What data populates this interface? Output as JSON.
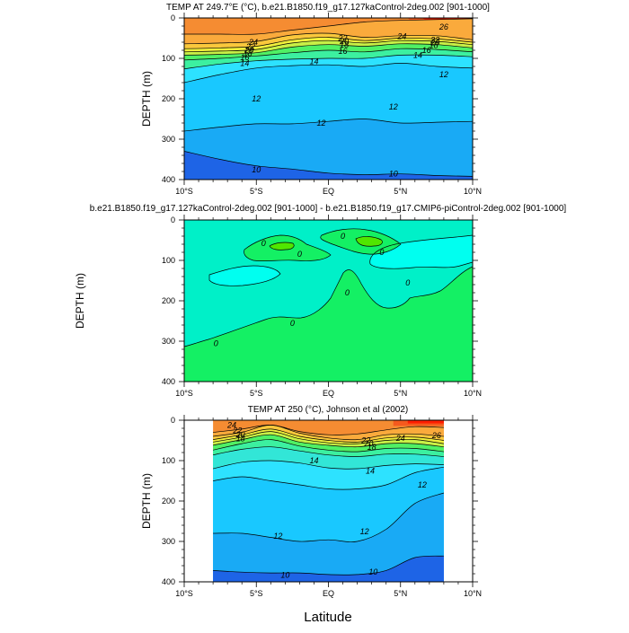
{
  "figure": {
    "xlabel": "Latitude",
    "colors": {
      "c10": "#1e64e6",
      "c12": "#1e8cf0",
      "c13": "#19aaf5",
      "c14": "#19c8ff",
      "c15": "#2de2ff",
      "c16": "#32e6d7",
      "c18": "#3cf0a0",
      "c20": "#50f064",
      "c22": "#c8f046",
      "c23": "#f0f03c",
      "c24": "#fac83c",
      "c25": "#faaa3c",
      "c26": "#f58c32",
      "c27": "#f55a1e",
      "dneg": "#00fff0",
      "dzero": "#00f0c8",
      "dpos": "#14f064",
      "dpos2": "#50e600"
    }
  },
  "chart_data": [
    {
      "type": "contour",
      "title": "TEMP AT 249.7°E (°C), b.e21.B1850.f19_g17.127kaControl-2deg.002 [901-1000]",
      "ylabel": "DEPTH (m)",
      "x_ticks": [
        "10°S",
        "5°S",
        "EQ",
        "5°N",
        "10°N"
      ],
      "x_tick_values": [
        -10,
        -5,
        0,
        5,
        10
      ],
      "y_ticks": [
        "0",
        "100",
        "200",
        "300",
        "400"
      ],
      "y_tick_values": [
        0,
        100,
        200,
        300,
        400
      ],
      "xlim": [
        -10,
        10
      ],
      "ylim": [
        400,
        0
      ],
      "data_extent": [
        -10,
        10
      ],
      "lat": [
        -10,
        -7.5,
        -5,
        -2.5,
        0,
        2.5,
        5,
        7.5,
        10
      ],
      "isotherms": [
        {
          "level": 25,
          "depth": [
            40,
            40,
            40,
            30,
            20,
            10,
            6,
            4,
            2
          ]
        },
        {
          "level": 24,
          "depth": [
            64,
            62,
            58,
            42,
            38,
            48,
            44,
            44,
            54
          ]
        },
        {
          "level": 22,
          "depth": [
            76,
            74,
            70,
            54,
            48,
            56,
            50,
            52,
            60
          ]
        },
        {
          "level": 20,
          "depth": [
            84,
            82,
            78,
            62,
            56,
            62,
            56,
            58,
            66
          ]
        },
        {
          "level": 18,
          "depth": [
            92,
            90,
            86,
            72,
            66,
            70,
            64,
            66,
            74
          ]
        },
        {
          "level": 16,
          "depth": [
            104,
            100,
            94,
            86,
            80,
            84,
            76,
            78,
            84
          ]
        },
        {
          "level": 14,
          "depth": [
            126,
            114,
            106,
            102,
            100,
            100,
            92,
            92,
            96
          ]
        },
        {
          "level": 13,
          "depth": [
            160,
            140,
            124,
            118,
            116,
            120,
            112,
            120,
            124
          ]
        },
        {
          "level": 12,
          "depth": [
            280,
            270,
            262,
            262,
            256,
            250,
            260,
            258,
            256
          ]
        },
        {
          "level": 10,
          "depth": [
            330,
            350,
            366,
            374,
            384,
            388,
            386,
            390,
            392
          ]
        }
      ],
      "labels": [
        {
          "text": "24",
          "lat": -5.2,
          "depth": 60
        },
        {
          "text": "22",
          "lat": -5.4,
          "depth": 71
        },
        {
          "text": "20",
          "lat": -5.5,
          "depth": 80
        },
        {
          "text": "18",
          "lat": -5.6,
          "depth": 88
        },
        {
          "text": "16",
          "lat": -5.8,
          "depth": 98
        },
        {
          "text": "14",
          "lat": -5.8,
          "depth": 112
        },
        {
          "text": "22",
          "lat": 1.0,
          "depth": 50
        },
        {
          "text": "20",
          "lat": 1.1,
          "depth": 58
        },
        {
          "text": "18",
          "lat": 1.1,
          "depth": 67
        },
        {
          "text": "16",
          "lat": 1.0,
          "depth": 82
        },
        {
          "text": "14",
          "lat": -1.0,
          "depth": 108
        },
        {
          "text": "24",
          "lat": 5.1,
          "depth": 46
        },
        {
          "text": "26",
          "lat": 8.0,
          "depth": 22
        },
        {
          "text": "22",
          "lat": 7.4,
          "depth": 54
        },
        {
          "text": "20",
          "lat": 7.4,
          "depth": 61
        },
        {
          "text": "18",
          "lat": 7.3,
          "depth": 68
        },
        {
          "text": "16",
          "lat": 6.8,
          "depth": 80
        },
        {
          "text": "14",
          "lat": 6.2,
          "depth": 92
        },
        {
          "text": "12",
          "lat": -5.0,
          "depth": 200
        },
        {
          "text": "12",
          "lat": -0.5,
          "depth": 260
        },
        {
          "text": "12",
          "lat": 4.5,
          "depth": 220
        },
        {
          "text": "12",
          "lat": 8.0,
          "depth": 140
        },
        {
          "text": "10",
          "lat": -5.0,
          "depth": 375
        },
        {
          "text": "10",
          "lat": 4.5,
          "depth": 386
        }
      ]
    },
    {
      "type": "contour",
      "title": "b.e21.B1850.f19_g17.127kaControl-2deg.002 [901-1000] - b.e21.B1850.f19_g17.CMIP6-piControl-2deg.002 [901-1000]",
      "ylabel": "DEPTH (m)",
      "x_ticks": [
        "10°S",
        "5°S",
        "EQ",
        "5°N",
        "10°N"
      ],
      "x_tick_values": [
        -10,
        -5,
        0,
        5,
        10
      ],
      "y_ticks": [
        "0",
        "100",
        "200",
        "300",
        "400"
      ],
      "y_tick_values": [
        0,
        100,
        200,
        300,
        400
      ],
      "xlim": [
        -10,
        10
      ],
      "ylim": [
        400,
        0
      ],
      "labels": [
        {
          "text": "0",
          "lat": -4.5,
          "depth": 58
        },
        {
          "text": "0",
          "lat": -2.0,
          "depth": 84
        },
        {
          "text": "0",
          "lat": 1.0,
          "depth": 40
        },
        {
          "text": "0",
          "lat": 3.7,
          "depth": 80
        },
        {
          "text": "0",
          "lat": 5.5,
          "depth": 155
        },
        {
          "text": "0",
          "lat": 1.3,
          "depth": 180
        },
        {
          "text": "0",
          "lat": -2.5,
          "depth": 255
        },
        {
          "text": "0",
          "lat": -7.8,
          "depth": 306
        }
      ]
    },
    {
      "type": "contour",
      "title": "TEMP AT 250 (°C), Johnson et al (2002)",
      "ylabel": "DEPTH (m)",
      "x_ticks": [
        "10°S",
        "5°S",
        "EQ",
        "5°N",
        "10°N"
      ],
      "x_tick_values": [
        -10,
        -5,
        0,
        5,
        10
      ],
      "y_ticks": [
        "0",
        "100",
        "200",
        "300",
        "400"
      ],
      "y_tick_values": [
        0,
        100,
        200,
        300,
        400
      ],
      "xlim": [
        -10,
        10
      ],
      "ylim": [
        400,
        0
      ],
      "data_extent": [
        -8,
        8
      ],
      "lat": [
        -8,
        -6,
        -4,
        -2,
        0,
        2,
        4,
        6,
        8
      ],
      "isotherms": [
        {
          "level": 25,
          "depth": [
            30,
            22,
            12,
            28,
            36,
            34,
            24,
            16,
            18
          ]
        },
        {
          "level": 24,
          "depth": [
            40,
            30,
            12,
            32,
            44,
            48,
            36,
            34,
            40
          ]
        },
        {
          "level": 22,
          "depth": [
            48,
            36,
            22,
            40,
            50,
            54,
            44,
            42,
            50
          ]
        },
        {
          "level": 20,
          "depth": [
            54,
            42,
            28,
            46,
            56,
            58,
            50,
            48,
            58
          ]
        },
        {
          "level": 18,
          "depth": [
            62,
            48,
            36,
            54,
            62,
            66,
            58,
            58,
            66
          ]
        },
        {
          "level": 16,
          "depth": [
            74,
            58,
            48,
            64,
            74,
            78,
            70,
            70,
            78
          ]
        },
        {
          "level": 15,
          "depth": [
            86,
            72,
            66,
            76,
            86,
            90,
            84,
            84,
            90
          ]
        },
        {
          "level": 14,
          "depth": [
            120,
            104,
            100,
            106,
            118,
            120,
            112,
            108,
            110
          ]
        },
        {
          "level": 13,
          "depth": [
            150,
            140,
            150,
            160,
            170,
            170,
            160,
            130,
            116
          ]
        },
        {
          "level": 12,
          "depth": [
            280,
            280,
            290,
            300,
            296,
            300,
            270,
            206,
            180
          ]
        },
        {
          "level": 10,
          "depth": [
            372,
            376,
            378,
            378,
            382,
            382,
            372,
            340,
            336
          ]
        }
      ],
      "labels": [
        {
          "text": "24",
          "lat": -6.7,
          "depth": 12
        },
        {
          "text": "22",
          "lat": -6.3,
          "depth": 26
        },
        {
          "text": "20",
          "lat": -6.1,
          "depth": 36
        },
        {
          "text": "18",
          "lat": -6.1,
          "depth": 46
        },
        {
          "text": "22",
          "lat": 2.6,
          "depth": 50
        },
        {
          "text": "20",
          "lat": 2.8,
          "depth": 58
        },
        {
          "text": "18",
          "lat": 3.0,
          "depth": 67
        },
        {
          "text": "24",
          "lat": 5.0,
          "depth": 44
        },
        {
          "text": "26",
          "lat": 7.5,
          "depth": 38
        },
        {
          "text": "14",
          "lat": -1.0,
          "depth": 100
        },
        {
          "text": "14",
          "lat": 2.9,
          "depth": 126
        },
        {
          "text": "12",
          "lat": 6.5,
          "depth": 160
        },
        {
          "text": "12",
          "lat": -3.5,
          "depth": 287
        },
        {
          "text": "12",
          "lat": 2.5,
          "depth": 275
        },
        {
          "text": "10",
          "lat": -3.0,
          "depth": 383
        },
        {
          "text": "10",
          "lat": 3.1,
          "depth": 375
        }
      ]
    }
  ]
}
